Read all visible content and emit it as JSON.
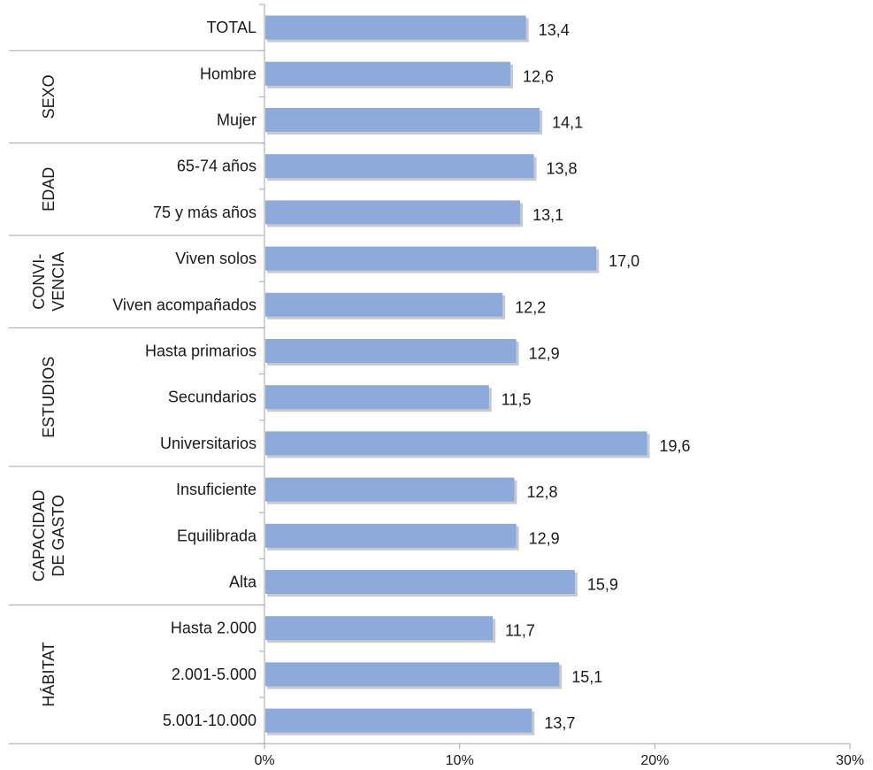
{
  "chart_data": {
    "type": "bar",
    "orientation": "horizontal",
    "categories": [
      "TOTAL",
      "Hombre",
      "Mujer",
      "65-74 años",
      "75 y más años",
      "Viven solos",
      "Viven acompañados",
      "Hasta primarios",
      "Secundarios",
      "Universitarios",
      "Insuficiente",
      "Equilibrada",
      "Alta",
      "Hasta 2.000",
      "2.001-5.000",
      "5.001-10.000"
    ],
    "values": [
      13.4,
      12.6,
      14.1,
      13.8,
      13.1,
      17.0,
      12.2,
      12.9,
      11.5,
      19.6,
      12.8,
      12.9,
      15.9,
      11.7,
      15.1,
      13.7
    ],
    "value_labels": [
      "13,4",
      "12,6",
      "14,1",
      "13,8",
      "13,1",
      "17,0",
      "12,2",
      "12,9",
      "11,5",
      "19,6",
      "12,8",
      "12,9",
      "15,9",
      "11,7",
      "15,1",
      "13,7"
    ],
    "groups": [
      {
        "lines": [],
        "start": 0,
        "end": 0
      },
      {
        "lines": [
          "SEXO"
        ],
        "start": 1,
        "end": 2
      },
      {
        "lines": [
          "EDAD"
        ],
        "start": 3,
        "end": 4
      },
      {
        "lines": [
          "CONVI-",
          "VENCIA"
        ],
        "start": 5,
        "end": 6
      },
      {
        "lines": [
          "ESTUDIOS"
        ],
        "start": 7,
        "end": 9
      },
      {
        "lines": [
          "CAPACIDAD",
          "DE GASTO"
        ],
        "start": 10,
        "end": 12
      },
      {
        "lines": [
          "HÁBITAT"
        ],
        "start": 13,
        "end": 15
      }
    ],
    "xlim": [
      0,
      30
    ],
    "x_ticks": [
      0,
      10,
      20,
      30
    ],
    "x_tick_labels": [
      "0%",
      "10%",
      "20%",
      "30%"
    ],
    "grid": false,
    "legend": "none",
    "bar_color": "#8eaadb",
    "bar_shadow_color": "#c9c9c9",
    "axis_color": "#a6a6a6",
    "title": "",
    "xlabel": "",
    "ylabel": ""
  }
}
